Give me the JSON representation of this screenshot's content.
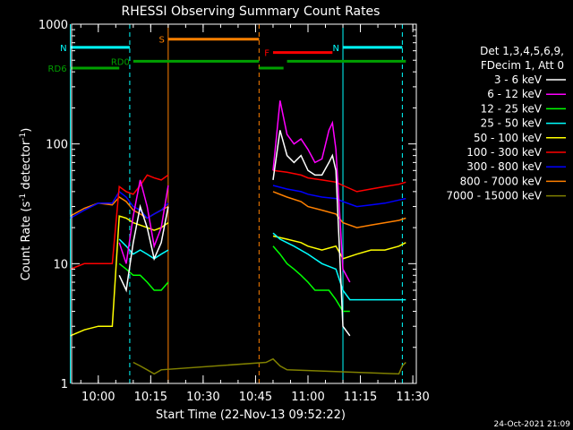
{
  "chart_data": {
    "type": "line",
    "title": "RHESSI Observing Summary Count Rates",
    "xlabel": "Start Time (22-Nov-13 09:52:22)",
    "ylabel_parts": [
      "Count Rate (s",
      "-1",
      " detector",
      "-1",
      ")"
    ],
    "yscale": "log",
    "ylim": [
      1,
      1000
    ],
    "xlim": [
      "09:52:22",
      "11:31:00"
    ],
    "y_ticks": [
      {
        "value": 1,
        "label": "1"
      },
      {
        "value": 10,
        "label": "10"
      },
      {
        "value": 100,
        "label": "100"
      },
      {
        "value": 1000,
        "label": "1000"
      }
    ],
    "x_ticks": [
      {
        "value": "10:00",
        "label": "10:00"
      },
      {
        "value": "10:15",
        "label": "10:15"
      },
      {
        "value": "10:30",
        "label": "10:30"
      },
      {
        "value": "10:45",
        "label": "10:45"
      },
      {
        "value": "11:00",
        "label": "11:00"
      },
      {
        "value": "11:15",
        "label": "11:15"
      },
      {
        "value": "11:30",
        "label": "11:30"
      }
    ],
    "legend_header": [
      "Det 1,3,4,5,6,9,",
      "FDecim 1, Att 0"
    ],
    "legend_placement": "right",
    "series": [
      {
        "name": "3 - 6 keV",
        "color": "#ffffff",
        "x": [
          "09:52",
          "10:04",
          "10:06",
          "10:08",
          "10:10",
          "10:12",
          "10:14",
          "10:16",
          "10:18",
          "10:20",
          "10:48",
          "10:50",
          "10:52",
          "10:54",
          "10:56",
          "10:58",
          "11:00",
          "11:02",
          "11:04",
          "11:06",
          "11:07",
          "11:08",
          "11:10",
          "11:12"
        ],
        "values": [
          null,
          null,
          8,
          6,
          15,
          30,
          20,
          11,
          15,
          30,
          null,
          50,
          130,
          80,
          70,
          80,
          60,
          55,
          55,
          70,
          80,
          60,
          3,
          2.5
        ]
      },
      {
        "name": "6 - 12 keV",
        "color": "#ff00ff",
        "x": [
          "10:04",
          "10:06",
          "10:08",
          "10:10",
          "10:12",
          "10:14",
          "10:16",
          "10:18",
          "10:20",
          "10:48",
          "10:50",
          "10:52",
          "10:54",
          "10:56",
          "10:58",
          "11:00",
          "11:02",
          "11:04",
          "11:06",
          "11:07",
          "11:08",
          "11:10",
          "11:12"
        ],
        "values": [
          null,
          15,
          10,
          25,
          50,
          30,
          14,
          20,
          45,
          null,
          60,
          230,
          120,
          100,
          110,
          90,
          70,
          75,
          130,
          150,
          90,
          9,
          7
        ]
      },
      {
        "name": "12 - 25 keV",
        "color": "#00ff00",
        "x": [
          "10:04",
          "10:06",
          "10:08",
          "10:10",
          "10:12",
          "10:14",
          "10:16",
          "10:18",
          "10:20",
          "10:48",
          "10:50",
          "10:52",
          "10:54",
          "10:56",
          "10:58",
          "11:00",
          "11:02",
          "11:04",
          "11:06",
          "11:08",
          "11:10",
          "11:12"
        ],
        "values": [
          null,
          10,
          9,
          8,
          8,
          7,
          6,
          6,
          7,
          null,
          14,
          12,
          10,
          9,
          8,
          7,
          6,
          6,
          6,
          5,
          4,
          4
        ]
      },
      {
        "name": "25 - 50 keV",
        "color": "#00ffff",
        "x": [
          "09:52",
          "09:56",
          "10:00",
          "10:04",
          "10:06",
          "10:08",
          "10:10",
          "10:12",
          "10:14",
          "10:16",
          "10:18",
          "10:20",
          "10:48",
          "10:50",
          "10:52",
          "10:56",
          "11:00",
          "11:04",
          "11:08",
          "11:10",
          "11:12",
          "11:14",
          "11:18",
          "11:22",
          "11:24",
          "11:26",
          "11:28"
        ],
        "values": [
          null,
          null,
          null,
          null,
          16,
          14,
          12,
          13,
          12,
          11,
          12,
          13,
          null,
          18,
          16,
          14,
          12,
          10,
          9,
          6,
          5,
          5,
          5,
          5,
          5,
          5,
          5
        ]
      },
      {
        "name": "50 - 100 keV",
        "color": "#ffff00",
        "x": [
          "09:52",
          "09:56",
          "10:00",
          "10:04",
          "10:06",
          "10:08",
          "10:10",
          "10:12",
          "10:14",
          "10:16",
          "10:18",
          "10:20",
          "10:48",
          "10:50",
          "10:54",
          "10:58",
          "11:00",
          "11:04",
          "11:08",
          "11:10",
          "11:14",
          "11:18",
          "11:22",
          "11:26",
          "11:28"
        ],
        "values": [
          2.5,
          2.8,
          3.0,
          3.0,
          25,
          24,
          22,
          21,
          20,
          19,
          20,
          22,
          null,
          17,
          16,
          15,
          14,
          13,
          14,
          11,
          12,
          13,
          13,
          14,
          15
        ]
      },
      {
        "name": "100 - 300 keV",
        "color": "#ff0000",
        "x": [
          "09:52",
          "09:56",
          "10:00",
          "10:04",
          "10:06",
          "10:08",
          "10:10",
          "10:12",
          "10:14",
          "10:16",
          "10:18",
          "10:20",
          "10:48",
          "10:50",
          "10:54",
          "10:58",
          "11:00",
          "11:04",
          "11:08",
          "11:10",
          "11:14",
          "11:18",
          "11:22",
          "11:26",
          "11:28"
        ],
        "values": [
          9,
          10,
          10,
          10,
          44,
          40,
          38,
          45,
          55,
          52,
          50,
          55,
          null,
          60,
          58,
          55,
          52,
          50,
          48,
          45,
          40,
          42,
          44,
          46,
          48
        ]
      },
      {
        "name": "300 - 800 keV",
        "color": "#0000ff",
        "x": [
          "09:52",
          "09:56",
          "10:00",
          "10:04",
          "10:06",
          "10:08",
          "10:10",
          "10:12",
          "10:14",
          "10:16",
          "10:18",
          "10:20",
          "10:48",
          "10:50",
          "10:54",
          "10:58",
          "11:00",
          "11:04",
          "11:08",
          "11:10",
          "11:14",
          "11:18",
          "11:22",
          "11:26",
          "11:28"
        ],
        "values": [
          24,
          28,
          32,
          32,
          40,
          36,
          30,
          28,
          24,
          26,
          28,
          32,
          null,
          45,
          42,
          40,
          38,
          36,
          35,
          33,
          30,
          31,
          32,
          34,
          35
        ]
      },
      {
        "name": "800 - 7000 keV",
        "color": "#ff8000",
        "x": [
          "09:52",
          "09:56",
          "10:00",
          "10:04",
          "10:06",
          "10:08",
          "10:10",
          "10:12",
          "10:14",
          "10:16",
          "10:18",
          "10:20",
          "10:48",
          "10:50",
          "10:54",
          "10:58",
          "11:00",
          "11:04",
          "11:08",
          "11:10",
          "11:14",
          "11:18",
          "11:22",
          "11:26",
          "11:28"
        ],
        "values": [
          25,
          29,
          32,
          31,
          36,
          33,
          28,
          26,
          24,
          26,
          28,
          30,
          null,
          40,
          36,
          33,
          30,
          28,
          26,
          22,
          20,
          21,
          22,
          23,
          24
        ]
      },
      {
        "name": "7000 - 15000 keV",
        "color": "#808000",
        "x": [
          "10:10",
          "10:12",
          "10:14",
          "10:16",
          "10:18",
          "10:48",
          "10:50",
          "10:52",
          "10:54",
          "11:26",
          "11:27",
          "11:28"
        ],
        "values": [
          1.5,
          1.4,
          1.3,
          1.2,
          1.3,
          1.5,
          1.6,
          1.4,
          1.3,
          1.2,
          1.4,
          1.5
        ]
      }
    ],
    "flags": [
      {
        "label": "N",
        "color": "#00ffff",
        "start": "09:52",
        "end": "10:09",
        "level": 640
      },
      {
        "label": "N",
        "color": "#00ffff",
        "start": "11:10",
        "end": "11:27",
        "level": 640
      },
      {
        "label": "S",
        "color": "#ff8000",
        "start": "10:20",
        "end": "10:46",
        "level": 750
      },
      {
        "label": "F",
        "color": "#ff0000",
        "start": "10:50",
        "end": "11:07",
        "level": 580
      },
      {
        "label": "RD0",
        "color": "#00a000",
        "start": "10:10",
        "end": "10:46",
        "level": 490
      },
      {
        "label": "RD6",
        "color": "#00a000",
        "start": "09:52",
        "end": "10:06",
        "level": 430
      },
      {
        "label": "",
        "color": "#00a000",
        "start": "10:46",
        "end": "10:53",
        "level": 430
      },
      {
        "label": "",
        "color": "#00a000",
        "start": "10:54",
        "end": "11:28",
        "level": 490
      }
    ],
    "markers": [
      {
        "time": "09:52",
        "color": "#00ffff",
        "style": "solid"
      },
      {
        "time": "10:09",
        "color": "#00ffff",
        "style": "dashed"
      },
      {
        "time": "10:20",
        "color": "#ff8000",
        "style": "solid"
      },
      {
        "time": "10:46",
        "color": "#ff8000",
        "style": "dashed"
      },
      {
        "time": "11:10",
        "color": "#00ffff",
        "style": "solid"
      },
      {
        "time": "11:27",
        "color": "#00ffff",
        "style": "dashed"
      }
    ],
    "footer_timestamp": "24-Oct-2021 21:09"
  }
}
